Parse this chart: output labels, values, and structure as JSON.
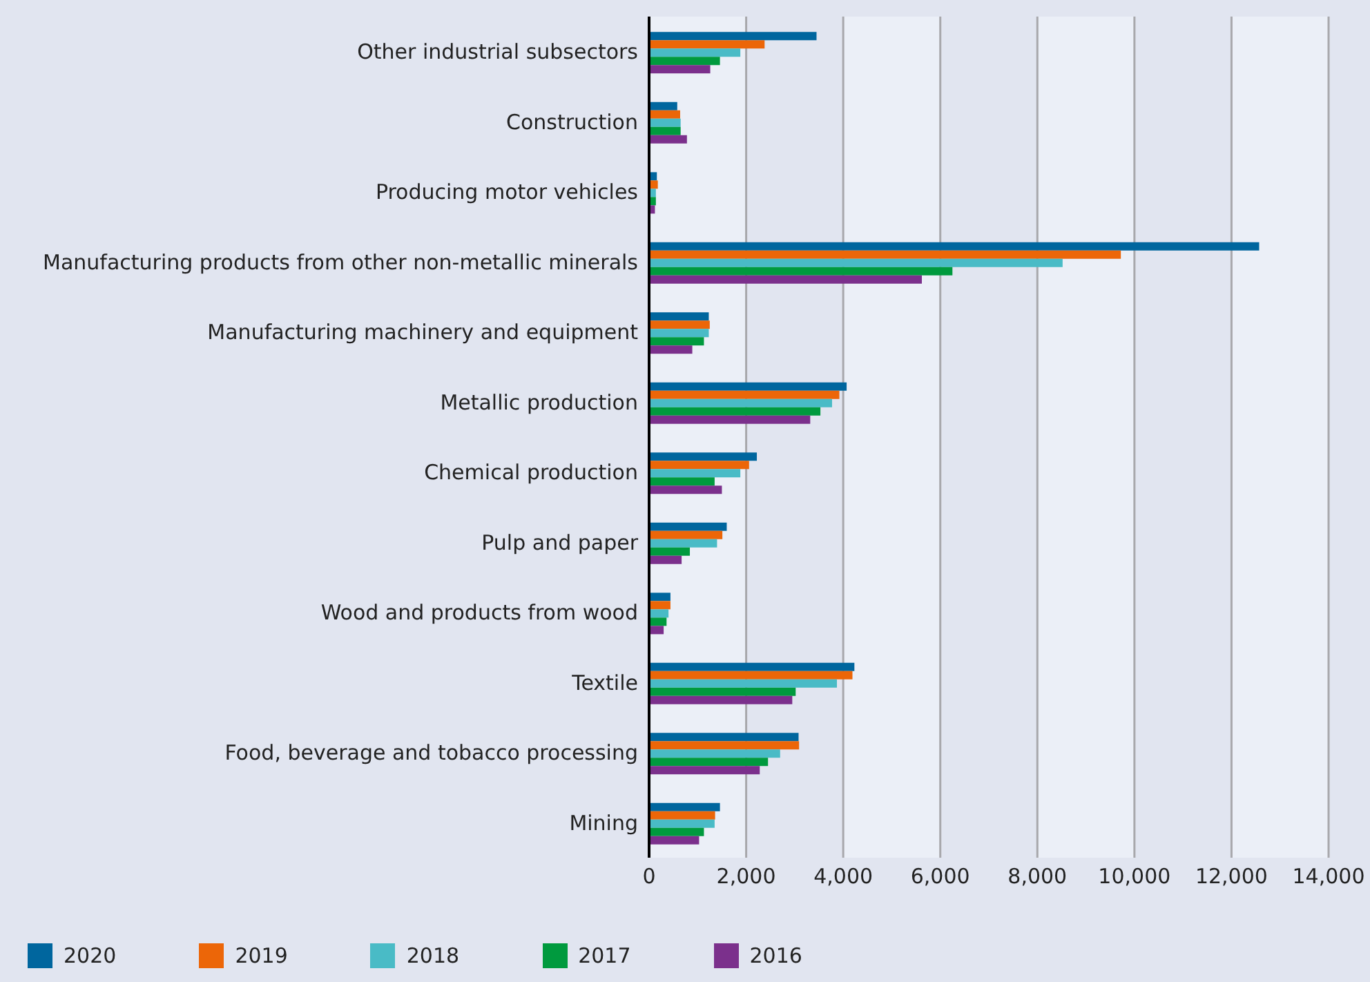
{
  "chart_data": {
    "type": "bar",
    "orientation": "horizontal",
    "categories": [
      "Other industrial subsectors",
      "Construction",
      "Producing motor vehicles",
      "Manufacturing products from other non-metallic minerals",
      "Manufacturing machinery and equipment",
      "Metallic production",
      "Chemical production",
      "Pulp and paper",
      "Wood and products from wood",
      "Textile",
      "Food, beverage and tobacco processing",
      "Mining"
    ],
    "series": [
      {
        "name": "2020",
        "color": "#00669e",
        "values": [
          3450,
          580,
          160,
          12570,
          1230,
          4070,
          2220,
          1600,
          440,
          4230,
          3080,
          1460
        ]
      },
      {
        "name": "2019",
        "color": "#ec6608",
        "values": [
          2380,
          640,
          180,
          9720,
          1250,
          3920,
          2060,
          1510,
          440,
          4190,
          3090,
          1360
        ]
      },
      {
        "name": "2018",
        "color": "#49bbc6",
        "values": [
          1880,
          650,
          140,
          8520,
          1230,
          3770,
          1880,
          1400,
          400,
          3870,
          2700,
          1350
        ]
      },
      {
        "name": "2017",
        "color": "#009a3e",
        "values": [
          1460,
          650,
          140,
          6250,
          1130,
          3530,
          1350,
          840,
          360,
          3020,
          2450,
          1130
        ]
      },
      {
        "name": "2016",
        "color": "#7b308c",
        "values": [
          1260,
          780,
          120,
          5620,
          890,
          3320,
          1500,
          670,
          300,
          2950,
          2280,
          1030
        ]
      }
    ],
    "xlim": [
      0,
      14000
    ],
    "xticks": [
      {
        "value": 0,
        "label": "0"
      },
      {
        "value": 2000,
        "label": "2,000"
      },
      {
        "value": 4000,
        "label": "4,000"
      },
      {
        "value": 6000,
        "label": "6,000"
      },
      {
        "value": 8000,
        "label": "8,000"
      },
      {
        "value": 10000,
        "label": "10,000"
      },
      {
        "value": 12000,
        "label": "12,000"
      },
      {
        "value": 14000,
        "label": "14,000"
      }
    ],
    "grid": "x",
    "legend": "bottom left"
  }
}
